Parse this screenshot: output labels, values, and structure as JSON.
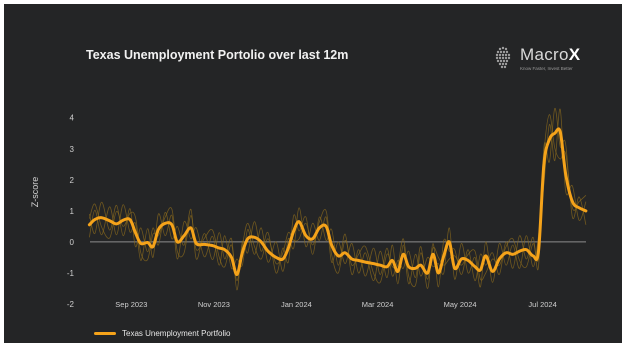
{
  "brand": {
    "name_prefix": "Macro",
    "name_suffix": "X",
    "tagline": "Know Faster, Invest Better",
    "icon": "head-silhouette-logo"
  },
  "chart_data": {
    "type": "line",
    "title": "Texas Unemployment Portolio over last 12m",
    "xlabel": "",
    "ylabel": "Z-score",
    "ylim": [
      -2,
      4.7
    ],
    "xlim": [
      "2023-07-28",
      "2024-08-08"
    ],
    "y_ticks": [
      "4",
      "3",
      "2",
      "1",
      "0",
      "-1",
      "-2"
    ],
    "x_ticks": [
      {
        "label": "Sep 2023",
        "date": "2023-09-01"
      },
      {
        "label": "Nov 2023",
        "date": "2023-11-01"
      },
      {
        "label": "Jan 2024",
        "date": "2024-01-01"
      },
      {
        "label": "Mar 2024",
        "date": "2024-03-01"
      },
      {
        "label": "May 2024",
        "date": "2024-05-01"
      },
      {
        "label": "Jul 2024",
        "date": "2024-07-01"
      }
    ],
    "reference_line": 0,
    "grid": false,
    "legend_position": "bottom-left",
    "colors": {
      "main": "#f5a31a",
      "components": "#8a6a1e",
      "zero_line": "#8c8c8c"
    },
    "series": [
      {
        "name": "Texas Unemployment Portfolio",
        "points": [
          [
            "2023-08-01",
            0.55
          ],
          [
            "2023-08-05",
            0.72
          ],
          [
            "2023-08-10",
            0.78
          ],
          [
            "2023-08-16",
            0.68
          ],
          [
            "2023-08-21",
            0.58
          ],
          [
            "2023-08-26",
            0.7
          ],
          [
            "2023-08-31",
            0.72
          ],
          [
            "2023-09-04",
            0.3
          ],
          [
            "2023-09-08",
            -0.05
          ],
          [
            "2023-09-13",
            -0.02
          ],
          [
            "2023-09-17",
            -0.15
          ],
          [
            "2023-09-21",
            0.4
          ],
          [
            "2023-09-26",
            0.6
          ],
          [
            "2023-10-01",
            0.55
          ],
          [
            "2023-10-05",
            0.0
          ],
          [
            "2023-10-10",
            0.2
          ],
          [
            "2023-10-15",
            0.45
          ],
          [
            "2023-10-19",
            -0.05
          ],
          [
            "2023-10-25",
            -0.08
          ],
          [
            "2023-10-31",
            -0.12
          ],
          [
            "2023-11-05",
            -0.2
          ],
          [
            "2023-11-09",
            -0.25
          ],
          [
            "2023-11-14",
            -0.5
          ],
          [
            "2023-11-18",
            -1.05
          ],
          [
            "2023-11-22",
            -0.35
          ],
          [
            "2023-11-26",
            0.1
          ],
          [
            "2023-12-01",
            0.15
          ],
          [
            "2023-12-06",
            0.0
          ],
          [
            "2023-12-11",
            -0.3
          ],
          [
            "2023-12-17",
            -0.5
          ],
          [
            "2023-12-22",
            -0.55
          ],
          [
            "2023-12-26",
            -0.2
          ],
          [
            "2023-12-30",
            0.35
          ],
          [
            "2024-01-03",
            0.65
          ],
          [
            "2024-01-08",
            0.2
          ],
          [
            "2024-01-13",
            0.1
          ],
          [
            "2024-01-18",
            0.45
          ],
          [
            "2024-01-23",
            0.5
          ],
          [
            "2024-01-27",
            -0.1
          ],
          [
            "2024-02-01",
            -0.45
          ],
          [
            "2024-02-06",
            -0.35
          ],
          [
            "2024-02-11",
            -0.55
          ],
          [
            "2024-02-16",
            -0.6
          ],
          [
            "2024-02-21",
            -0.65
          ],
          [
            "2024-02-27",
            -0.7
          ],
          [
            "2024-03-03",
            -0.75
          ],
          [
            "2024-03-08",
            -0.8
          ],
          [
            "2024-03-12",
            -0.6
          ],
          [
            "2024-03-16",
            -0.95
          ],
          [
            "2024-03-20",
            -0.4
          ],
          [
            "2024-03-24",
            -0.8
          ],
          [
            "2024-03-29",
            -0.85
          ],
          [
            "2024-04-02",
            -0.75
          ],
          [
            "2024-04-07",
            -1.0
          ],
          [
            "2024-04-11",
            -0.4
          ],
          [
            "2024-04-15",
            -1.0
          ],
          [
            "2024-04-19",
            -0.45
          ],
          [
            "2024-04-23",
            0.0
          ],
          [
            "2024-04-27",
            -0.85
          ],
          [
            "2024-05-02",
            -0.55
          ],
          [
            "2024-05-07",
            -0.6
          ],
          [
            "2024-05-12",
            -0.8
          ],
          [
            "2024-05-16",
            -0.9
          ],
          [
            "2024-05-20",
            -0.45
          ],
          [
            "2024-05-25",
            -0.95
          ],
          [
            "2024-05-30",
            -0.55
          ],
          [
            "2024-06-04",
            -0.35
          ],
          [
            "2024-06-09",
            -0.4
          ],
          [
            "2024-06-14",
            -0.3
          ],
          [
            "2024-06-19",
            -0.25
          ],
          [
            "2024-06-24",
            -0.45
          ],
          [
            "2024-06-28",
            -0.3
          ],
          [
            "2024-07-02",
            2.5
          ],
          [
            "2024-07-06",
            3.3
          ],
          [
            "2024-07-10",
            3.5
          ],
          [
            "2024-07-14",
            3.55
          ],
          [
            "2024-07-18",
            2.2
          ],
          [
            "2024-07-23",
            1.3
          ],
          [
            "2024-07-28",
            1.1
          ],
          [
            "2024-08-02",
            1.0
          ]
        ]
      }
    ]
  },
  "legend": {
    "label": "Texas Unemployment Portfolio"
  }
}
